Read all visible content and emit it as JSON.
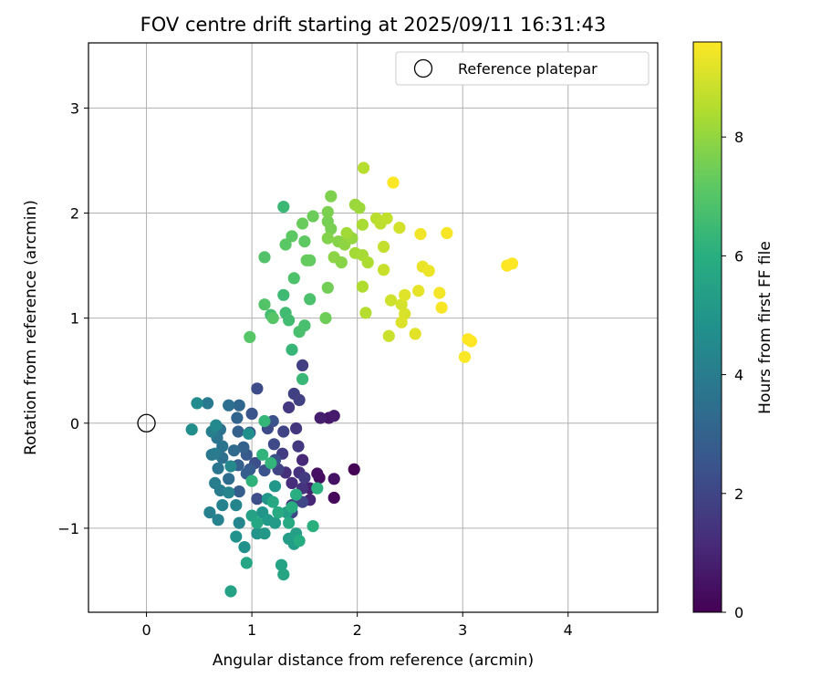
{
  "chart_data": {
    "type": "scatter",
    "title": "FOV centre drift starting at 2025/09/11 16:31:43",
    "xlabel": "Angular distance from reference (arcmin)",
    "ylabel": "Rotation from reference (arcmin)",
    "xlim": [
      -0.55,
      4.85
    ],
    "ylim": [
      -1.8,
      3.62
    ],
    "xticks": [
      0,
      1,
      2,
      3,
      4
    ],
    "xtick_labels": [
      "0",
      "1",
      "2",
      "3",
      "4"
    ],
    "yticks": [
      -1,
      0,
      1,
      2,
      3
    ],
    "ytick_labels": [
      "−1",
      "0",
      "1",
      "2",
      "3"
    ],
    "grid": true,
    "legend": {
      "position": "top-right",
      "entries": [
        {
          "label": "Reference platepar",
          "marker": "open-circle"
        }
      ]
    },
    "reference_point": {
      "x": 0,
      "y": 0
    },
    "colorbar": {
      "label": "Hours from first FF file",
      "range": [
        0,
        9.6
      ],
      "ticks": [
        0,
        2,
        4,
        6,
        8
      ],
      "tick_labels": [
        "0",
        "2",
        "4",
        "6",
        "8"
      ],
      "colormap": "viridis"
    },
    "points": [
      [
        1.97,
        -0.44,
        0.1
      ],
      [
        1.78,
        -0.71,
        0.2
      ],
      [
        1.64,
        -0.52,
        0.3
      ],
      [
        1.62,
        -0.48,
        0.4
      ],
      [
        1.78,
        -0.53,
        0.5
      ],
      [
        1.73,
        0.05,
        0.6
      ],
      [
        1.78,
        0.07,
        0.7
      ],
      [
        1.65,
        0.05,
        0.8
      ],
      [
        1.55,
        -0.62,
        0.9
      ],
      [
        1.55,
        -0.73,
        1.0
      ],
      [
        1.48,
        -0.35,
        1.1
      ],
      [
        1.38,
        -0.57,
        1.2
      ],
      [
        1.32,
        -0.47,
        1.3
      ],
      [
        1.45,
        -0.47,
        1.35
      ],
      [
        1.48,
        -0.62,
        1.4
      ],
      [
        1.38,
        -0.78,
        1.45
      ],
      [
        1.42,
        -0.05,
        1.5
      ],
      [
        1.35,
        0.15,
        1.55
      ],
      [
        1.44,
        -0.22,
        1.6
      ],
      [
        1.5,
        -0.52,
        1.65
      ],
      [
        1.29,
        -0.29,
        1.7
      ],
      [
        1.48,
        0.55,
        1.75
      ],
      [
        1.4,
        0.28,
        1.8
      ],
      [
        1.45,
        0.22,
        1.85
      ],
      [
        1.3,
        -0.08,
        1.9
      ],
      [
        1.25,
        -0.44,
        1.95
      ],
      [
        1.38,
        -0.85,
        2.0
      ],
      [
        1.48,
        -0.75,
        2.05
      ],
      [
        1.15,
        -0.05,
        2.1
      ],
      [
        1.21,
        -0.2,
        2.15
      ],
      [
        1.05,
        0.33,
        2.2
      ],
      [
        1.05,
        -0.72,
        2.25
      ],
      [
        1.03,
        -0.38,
        2.3
      ],
      [
        1.22,
        -0.35,
        2.35
      ],
      [
        1.2,
        0.02,
        2.4
      ],
      [
        1.12,
        -0.45,
        2.45
      ],
      [
        1.0,
        0.09,
        2.5
      ],
      [
        0.98,
        -0.09,
        2.6
      ],
      [
        0.95,
        -0.3,
        2.7
      ],
      [
        0.98,
        -0.44,
        2.75
      ],
      [
        0.88,
        -0.65,
        2.8
      ],
      [
        0.95,
        -0.48,
        2.85
      ],
      [
        0.87,
        -0.4,
        2.9
      ],
      [
        0.87,
        -0.08,
        2.95
      ],
      [
        0.92,
        -0.23,
        3.0
      ],
      [
        0.86,
        0.05,
        3.1
      ],
      [
        0.88,
        0.17,
        3.2
      ],
      [
        0.83,
        -0.26,
        3.3
      ],
      [
        0.78,
        -0.53,
        3.4
      ],
      [
        0.78,
        0.17,
        3.5
      ],
      [
        0.72,
        -0.33,
        3.55
      ],
      [
        0.7,
        -0.06,
        3.6
      ],
      [
        0.72,
        -0.22,
        3.65
      ],
      [
        0.67,
        -0.14,
        3.7
      ],
      [
        0.68,
        -0.43,
        3.75
      ],
      [
        0.62,
        -0.3,
        3.8
      ],
      [
        0.58,
        0.19,
        3.9
      ],
      [
        0.65,
        -0.29,
        3.95
      ],
      [
        0.7,
        -0.64,
        4.0
      ],
      [
        0.65,
        -0.57,
        4.05
      ],
      [
        0.62,
        -0.08,
        4.1
      ],
      [
        0.6,
        -0.85,
        4.15
      ],
      [
        0.72,
        -0.78,
        4.2
      ],
      [
        0.68,
        -0.92,
        4.25
      ],
      [
        0.78,
        -0.66,
        4.3
      ],
      [
        0.85,
        -0.78,
        4.35
      ],
      [
        0.88,
        -0.95,
        4.4
      ],
      [
        0.8,
        -0.41,
        4.45
      ],
      [
        0.66,
        -0.02,
        4.5
      ],
      [
        0.48,
        0.19,
        4.6
      ],
      [
        0.43,
        -0.06,
        4.7
      ],
      [
        0.97,
        -0.1,
        4.75
      ],
      [
        0.93,
        -1.18,
        4.8
      ],
      [
        0.85,
        -1.08,
        4.85
      ],
      [
        1.05,
        -1.05,
        4.9
      ],
      [
        1.1,
        -0.85,
        4.95
      ],
      [
        1.15,
        -0.72,
        5.0
      ],
      [
        1.22,
        -0.6,
        5.05
      ],
      [
        1.12,
        -1.05,
        5.1
      ],
      [
        1.15,
        -0.92,
        5.15
      ],
      [
        1.22,
        -0.95,
        5.2
      ],
      [
        1.35,
        -1.1,
        5.25
      ],
      [
        1.4,
        -1.15,
        5.3
      ],
      [
        1.33,
        -0.85,
        5.35
      ],
      [
        1.42,
        -1.05,
        5.4
      ],
      [
        1.0,
        -0.88,
        5.45
      ],
      [
        0.8,
        -1.6,
        5.5
      ],
      [
        1.28,
        -1.35,
        5.55
      ],
      [
        1.3,
        -1.44,
        5.6
      ],
      [
        0.95,
        -1.33,
        5.65
      ],
      [
        1.05,
        -0.95,
        5.7
      ],
      [
        1.2,
        -0.75,
        5.75
      ],
      [
        1.25,
        -0.85,
        5.8
      ],
      [
        1.35,
        -0.95,
        5.85
      ],
      [
        1.45,
        -1.12,
        5.9
      ],
      [
        1.38,
        -0.8,
        5.95
      ],
      [
        1.42,
        -0.68,
        6.0
      ],
      [
        1.58,
        -0.98,
        6.05
      ],
      [
        1.62,
        -0.62,
        6.1
      ],
      [
        1.0,
        -0.55,
        6.15
      ],
      [
        1.1,
        -0.3,
        6.2
      ],
      [
        1.18,
        -0.38,
        6.25
      ],
      [
        1.12,
        0.02,
        6.3
      ],
      [
        1.38,
        0.7,
        6.35
      ],
      [
        1.48,
        0.42,
        6.4
      ],
      [
        1.3,
        2.06,
        6.45
      ],
      [
        1.3,
        1.22,
        6.5
      ],
      [
        1.32,
        1.05,
        6.55
      ],
      [
        1.35,
        0.98,
        6.6
      ],
      [
        1.18,
        1.03,
        6.65
      ],
      [
        1.5,
        0.93,
        6.7
      ],
      [
        1.45,
        0.87,
        6.75
      ],
      [
        1.55,
        1.18,
        6.8
      ],
      [
        1.4,
        1.38,
        6.85
      ],
      [
        1.12,
        1.58,
        6.9
      ],
      [
        1.12,
        1.13,
        6.95
      ],
      [
        1.2,
        1.0,
        7.0
      ],
      [
        0.98,
        0.82,
        7.05
      ],
      [
        1.32,
        1.7,
        7.1
      ],
      [
        1.38,
        1.78,
        7.15
      ],
      [
        1.5,
        1.73,
        7.2
      ],
      [
        1.55,
        1.55,
        7.25
      ],
      [
        1.52,
        1.55,
        7.3
      ],
      [
        1.48,
        1.9,
        7.35
      ],
      [
        1.58,
        1.97,
        7.4
      ],
      [
        1.7,
        1.0,
        7.45
      ],
      [
        1.72,
        1.29,
        7.5
      ],
      [
        1.72,
        1.92,
        7.55
      ],
      [
        1.75,
        1.85,
        7.6
      ],
      [
        1.72,
        2.01,
        7.65
      ],
      [
        1.75,
        2.16,
        7.7
      ],
      [
        1.72,
        1.76,
        7.75
      ],
      [
        1.82,
        1.73,
        7.8
      ],
      [
        1.85,
        1.53,
        7.85
      ],
      [
        1.78,
        1.58,
        7.9
      ],
      [
        1.88,
        1.7,
        7.95
      ],
      [
        1.92,
        1.78,
        8.0
      ],
      [
        1.95,
        1.76,
        8.05
      ],
      [
        1.98,
        2.08,
        8.1
      ],
      [
        2.02,
        2.05,
        8.15
      ],
      [
        1.9,
        1.81,
        8.2
      ],
      [
        1.98,
        1.62,
        8.25
      ],
      [
        2.05,
        1.6,
        8.3
      ],
      [
        2.05,
        1.89,
        8.35
      ],
      [
        2.1,
        1.53,
        8.4
      ],
      [
        2.05,
        1.3,
        8.45
      ],
      [
        2.08,
        1.05,
        8.5
      ],
      [
        2.06,
        2.43,
        8.55
      ],
      [
        2.18,
        1.95,
        8.6
      ],
      [
        2.22,
        1.9,
        8.65
      ],
      [
        2.28,
        1.95,
        8.7
      ],
      [
        2.25,
        1.68,
        8.75
      ],
      [
        2.25,
        1.46,
        8.8
      ],
      [
        2.3,
        0.83,
        8.85
      ],
      [
        2.32,
        1.17,
        8.9
      ],
      [
        2.4,
        1.86,
        8.95
      ],
      [
        2.42,
        1.13,
        9.0
      ],
      [
        2.45,
        1.04,
        9.05
      ],
      [
        2.42,
        0.96,
        9.1
      ],
      [
        2.45,
        1.22,
        9.15
      ],
      [
        2.55,
        0.85,
        9.2
      ],
      [
        2.58,
        1.26,
        9.25
      ],
      [
        2.62,
        1.49,
        9.3
      ],
      [
        2.68,
        1.45,
        9.35
      ],
      [
        2.6,
        1.8,
        9.4
      ],
      [
        2.78,
        1.24,
        9.45
      ],
      [
        2.8,
        1.1,
        9.5
      ],
      [
        2.85,
        1.81,
        9.5
      ],
      [
        2.34,
        2.29,
        9.55
      ],
      [
        3.02,
        0.63,
        9.55
      ],
      [
        3.05,
        0.8,
        9.6
      ],
      [
        3.08,
        0.78,
        9.6
      ],
      [
        3.42,
        1.5,
        9.6
      ],
      [
        3.47,
        1.52,
        9.6
      ]
    ]
  }
}
